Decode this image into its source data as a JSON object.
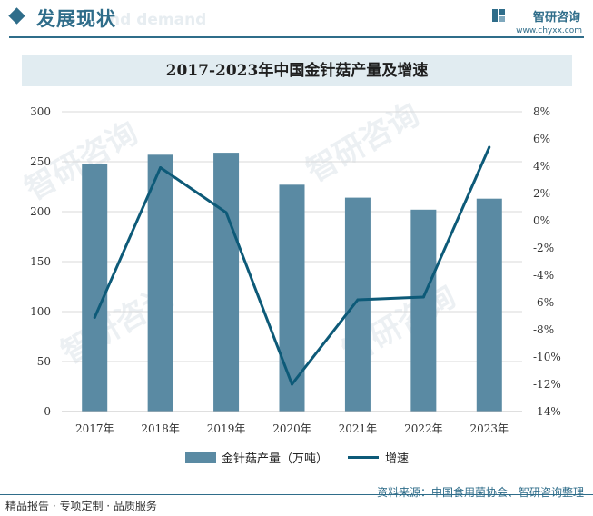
{
  "header": {
    "section_title": "发展现状",
    "ghost_text": "nd demand",
    "brand_name": "智研咨询",
    "brand_url": "www.chyxx.com",
    "watermark_text": "智研咨询"
  },
  "colors": {
    "bar": "#5a8aa3",
    "line": "#0d5a78",
    "accent": "#2f6d8a",
    "title_band": "#e1ecf1"
  },
  "chart_data": {
    "type": "bar",
    "title": "2017-2023年中国金针菇产量及增速",
    "categories": [
      "2017年",
      "2018年",
      "2019年",
      "2020年",
      "2021年",
      "2022年",
      "2023年"
    ],
    "series": [
      {
        "name": "金针菇产量（万吨）",
        "type": "bar",
        "axis": "left",
        "values": [
          248,
          257,
          259,
          227,
          214,
          202,
          213
        ]
      },
      {
        "name": "增速",
        "type": "line",
        "axis": "right",
        "values": [
          -7.1,
          3.9,
          0.6,
          -12.0,
          -5.8,
          -5.6,
          5.4
        ]
      }
    ],
    "y_left": {
      "min": 0,
      "max": 300,
      "ticks": [
        "0",
        "50",
        "100",
        "150",
        "200",
        "250",
        "300"
      ]
    },
    "y_right": {
      "min": -14,
      "max": 8,
      "ticks": [
        "-14%",
        "-12%",
        "-10%",
        "-8%",
        "-6%",
        "-4%",
        "-2%",
        "0%",
        "2%",
        "4%",
        "6%",
        "8%"
      ]
    },
    "grid": true,
    "legend_position": "bottom"
  },
  "footer": {
    "source": "资料来源：中国食用菌协会、智研咨询整理",
    "tagline": "精品报告 · 专项定制 · 品质服务"
  }
}
